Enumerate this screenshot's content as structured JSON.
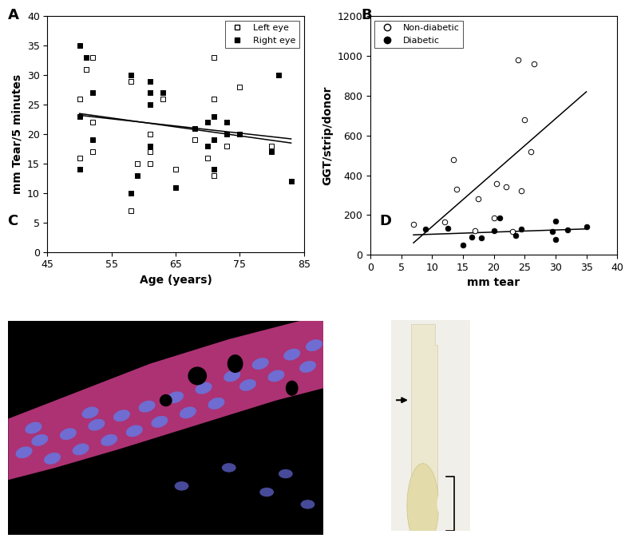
{
  "panel_labels": [
    "A",
    "B",
    "C",
    "D"
  ],
  "chart_data": [
    {
      "type": "scatter",
      "panel": "A",
      "x_label": "Age (years)",
      "y_label": "mm Tear/5 minutes",
      "xlim": [
        45,
        85
      ],
      "xticks": [
        45,
        55,
        65,
        75,
        85
      ],
      "ylim": [
        0,
        40
      ],
      "yticks": [
        0,
        5,
        10,
        15,
        20,
        25,
        30,
        35,
        40
      ],
      "legend": "upper right",
      "series": [
        {
          "name": "Left eye",
          "marker": "open_square",
          "color": "#000000",
          "x": [
            50,
            50,
            51,
            52,
            52,
            52,
            58,
            58,
            59,
            61,
            61,
            61,
            63,
            65,
            68,
            70,
            71,
            71,
            71,
            73,
            75,
            80
          ],
          "values": [
            26,
            16,
            31,
            22,
            17,
            33,
            7,
            29,
            15,
            20,
            17,
            15,
            26,
            14,
            19,
            16,
            33,
            26,
            13,
            18,
            28,
            18
          ],
          "trend": {
            "x": [
              50,
              83
            ],
            "values": [
              23.5,
              18.5
            ]
          }
        },
        {
          "name": "Right eye",
          "marker": "square",
          "color": "#000000",
          "x": [
            50,
            50,
            50,
            51,
            52,
            52,
            58,
            58,
            59,
            61,
            61,
            61,
            61,
            63,
            65,
            68,
            70,
            70,
            71,
            71,
            71,
            73,
            73,
            75,
            80,
            81,
            83
          ],
          "values": [
            35,
            23,
            14,
            33,
            27,
            19,
            10,
            30,
            13,
            29,
            27,
            25,
            18,
            27,
            11,
            21,
            22,
            18,
            23,
            19,
            14,
            22,
            20,
            20,
            17,
            30,
            12
          ],
          "trend": {
            "x": [
              50,
              83
            ],
            "values": [
              23.2,
              19.2
            ]
          }
        }
      ]
    },
    {
      "type": "scatter",
      "panel": "B",
      "x_label": "mm tear",
      "y_label": "GGT/strip/donor",
      "xlim": [
        0,
        40
      ],
      "xticks": [
        0,
        5,
        10,
        15,
        20,
        25,
        30,
        35,
        40
      ],
      "ylim": [
        0,
        1200
      ],
      "yticks": [
        0,
        200,
        400,
        600,
        800,
        1000,
        1200
      ],
      "legend": "upper left",
      "series": [
        {
          "name": "Non-diabetic",
          "marker": "open_circle",
          "color": "#000000",
          "x": [
            7,
            12,
            13.5,
            14,
            17,
            17.5,
            20,
            20.5,
            22,
            23,
            24,
            24.5,
            25,
            26,
            26.5
          ],
          "values": [
            155,
            165,
            480,
            330,
            120,
            280,
            185,
            360,
            340,
            115,
            980,
            320,
            680,
            520,
            960
          ],
          "trend": {
            "x": [
              7,
              35
            ],
            "values": [
              60,
              820
            ]
          }
        },
        {
          "name": "Diabetic",
          "marker": "circle",
          "color": "#000000",
          "x": [
            9,
            12.5,
            15,
            16.5,
            18,
            20,
            21,
            23.5,
            24.5,
            29.5,
            30,
            30,
            32,
            35
          ],
          "values": [
            130,
            135,
            50,
            90,
            85,
            120,
            185,
            95,
            130,
            115,
            170,
            75,
            125,
            140
          ],
          "trend": {
            "x": [
              7,
              35
            ],
            "values": [
              100,
              130
            ]
          }
        }
      ]
    }
  ]
}
